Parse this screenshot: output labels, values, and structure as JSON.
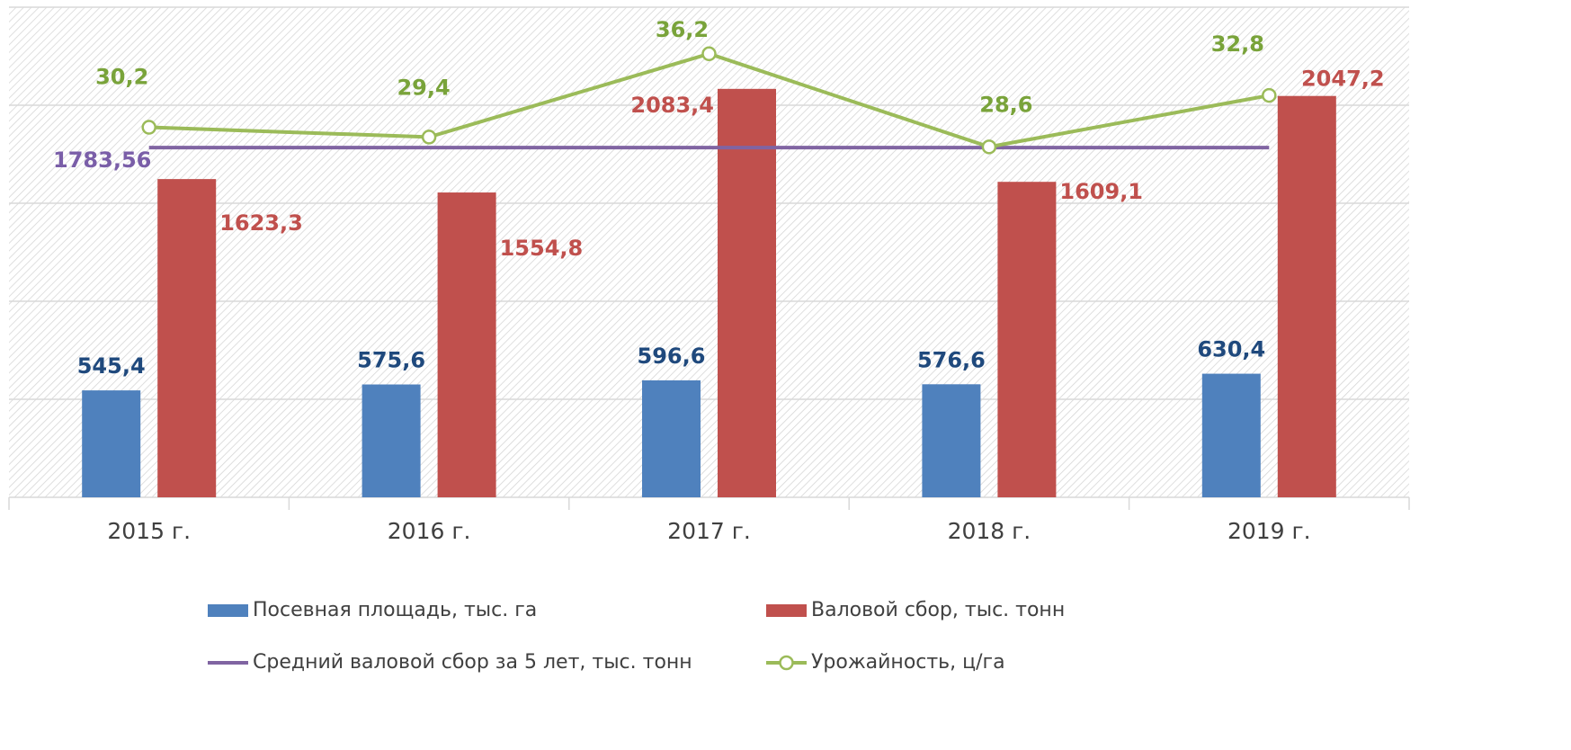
{
  "chart_data": {
    "type": "bar",
    "categories": [
      "2015 г.",
      "2016 г.",
      "2017 г.",
      "2018 г.",
      "2019 г."
    ],
    "ylim": [
      0,
      2500
    ],
    "yticks": [
      0,
      500,
      1000,
      1500,
      2000,
      2500
    ],
    "grid": true,
    "y2lim": [
      0,
      40
    ],
    "series": [
      {
        "name": "Посевная площадь, тыс. га",
        "type": "bar",
        "color": "#4f81bd",
        "values": [
          545.4,
          575.6,
          596.6,
          576.6,
          630.4
        ],
        "value_labels": [
          "545,4",
          "575,6",
          "596,6",
          "576,6",
          "630,4"
        ]
      },
      {
        "name": "Валовой сбор, тыс. тонн",
        "type": "bar",
        "color": "#c0504d",
        "values": [
          1623.3,
          1554.8,
          2083.4,
          1609.1,
          2047.2
        ],
        "value_labels": [
          "1623,3",
          "1554,8",
          "2083,4",
          "1609,1",
          "2047,2"
        ]
      },
      {
        "name": "Средний валовой сбор за 5 лет, тыс. тонн",
        "type": "line",
        "color": "#8064a2",
        "values": [
          1783.56,
          1783.56,
          1783.56,
          1783.56,
          1783.56
        ],
        "value_labels": [
          "1783,56"
        ]
      },
      {
        "name": "Урожайность, ц/га",
        "type": "line",
        "axis": "y2",
        "marker": true,
        "color": "#9bbb59",
        "values": [
          30.2,
          29.4,
          36.2,
          28.6,
          32.8
        ],
        "value_labels": [
          "30,2",
          "29,4",
          "36,2",
          "28,6",
          "32,8"
        ]
      }
    ]
  }
}
